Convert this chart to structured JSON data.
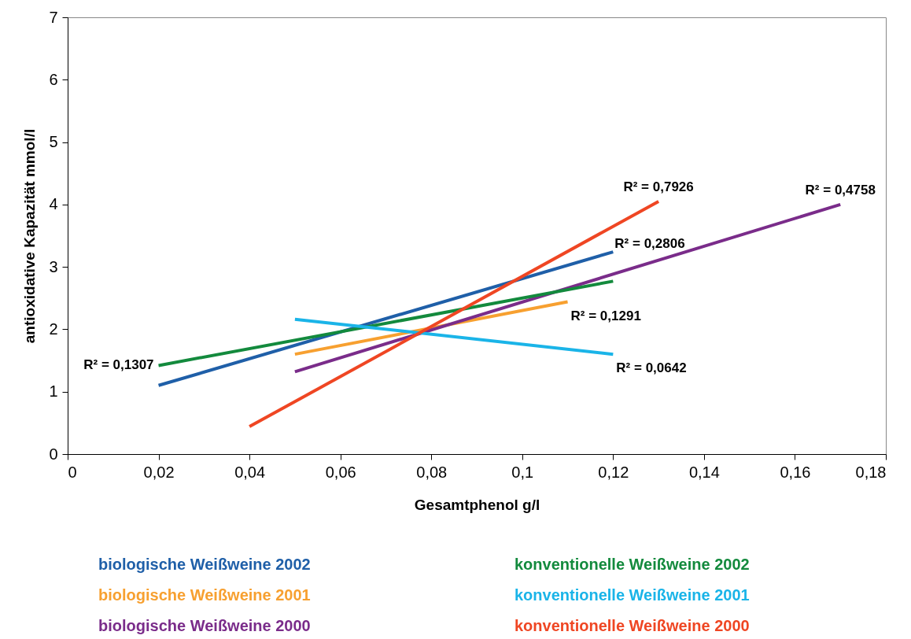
{
  "chart_data": {
    "type": "line",
    "xlabel": "Gesamtphenol g/l",
    "ylabel": "antioxidative Kapazität mmol/l",
    "xlim": [
      0,
      0.18
    ],
    "ylim": [
      0,
      7
    ],
    "xticks": [
      0,
      {
        "value": 0.02,
        "label": "0,02"
      },
      {
        "value": 0.04,
        "label": "0,04"
      },
      {
        "value": 0.06,
        "label": "0,06"
      },
      {
        "value": 0.08,
        "label": "0,08"
      },
      {
        "value": 0.1,
        "label": "0,1"
      },
      {
        "value": 0.12,
        "label": "0,12"
      },
      {
        "value": 0.14,
        "label": "0,14"
      },
      {
        "value": 0.16,
        "label": "0,16"
      },
      {
        "value": 0.18,
        "label": "0,18"
      }
    ],
    "yticks": [
      0,
      1,
      2,
      3,
      4,
      5,
      6,
      7
    ],
    "legend": "bottom",
    "grid": false,
    "series": [
      {
        "name": "biologische Weißweine 2002",
        "color": "#1f5fa8",
        "x": [
          0.02,
          0.12
        ],
        "values": [
          1.1,
          3.24
        ]
      },
      {
        "name": "biologische Weißweine 2001",
        "color": "#f7a030",
        "x": [
          0.05,
          0.11
        ],
        "values": [
          1.6,
          2.44
        ]
      },
      {
        "name": "biologische Weißweine 2000",
        "color": "#7a2c8a",
        "x": [
          0.05,
          0.17
        ],
        "values": [
          1.32,
          4.0
        ]
      },
      {
        "name": "konventionelle Weißweine 2002",
        "color": "#138a3d",
        "x": [
          0.02,
          0.12
        ],
        "values": [
          1.42,
          2.77
        ]
      },
      {
        "name": "konventionelle Weißweine 2001",
        "color": "#1ab4e8",
        "x": [
          0.05,
          0.12
        ],
        "values": [
          2.16,
          1.6
        ]
      },
      {
        "name": "konventionelle Weißweine 2000",
        "color": "#ef4623",
        "x": [
          0.04,
          0.13
        ],
        "values": [
          0.44,
          4.05
        ]
      }
    ],
    "annotations": [
      {
        "text": "R² = 0,1307",
        "x": 0.02,
        "y": 1.42
      },
      {
        "text": "R² = 0,7926",
        "x": 0.13,
        "y": 4.05
      },
      {
        "text": "R² = 0,4758",
        "x": 0.17,
        "y": 4.0
      },
      {
        "text": "R² = 0,2806",
        "x": 0.12,
        "y": 3.24
      },
      {
        "text": "R² = 0,1291",
        "x": 0.11,
        "y": 2.44
      },
      {
        "text": "R² = 0,0642",
        "x": 0.12,
        "y": 1.6
      }
    ]
  }
}
